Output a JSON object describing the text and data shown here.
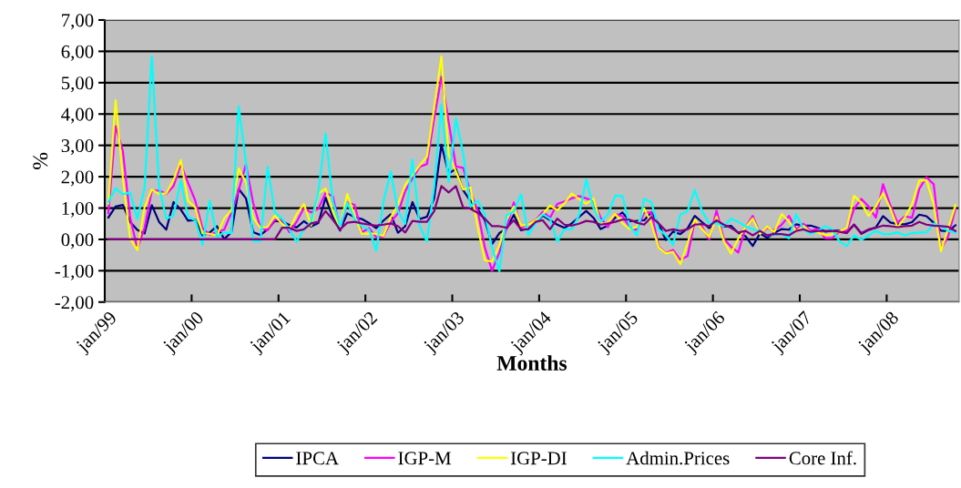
{
  "chart_data": {
    "type": "line",
    "xlabel": "Months",
    "ylabel": "%",
    "categories": [
      "jan/99",
      null,
      null,
      null,
      null,
      null,
      null,
      null,
      null,
      null,
      null,
      null,
      "jan/00",
      null,
      null,
      null,
      null,
      null,
      null,
      null,
      null,
      null,
      null,
      null,
      "jan/01",
      null,
      null,
      null,
      null,
      null,
      null,
      null,
      null,
      null,
      null,
      null,
      "jan/02",
      null,
      null,
      null,
      null,
      null,
      null,
      null,
      null,
      null,
      null,
      null,
      "jan/03",
      null,
      null,
      null,
      null,
      null,
      null,
      null,
      null,
      null,
      null,
      null,
      "jan/04",
      null,
      null,
      null,
      null,
      null,
      null,
      null,
      null,
      null,
      null,
      null,
      "jan/05",
      null,
      null,
      null,
      null,
      null,
      null,
      null,
      null,
      null,
      null,
      null,
      "jan/06",
      null,
      null,
      null,
      null,
      null,
      null,
      null,
      null,
      null,
      null,
      null,
      "jan/07",
      null,
      null,
      null,
      null,
      null,
      null,
      null,
      null,
      null,
      null,
      null,
      "jan/08",
      null,
      null,
      null,
      null,
      null,
      null,
      null,
      null,
      null
    ],
    "series": [
      {
        "name": "IPCA",
        "color": "#000080",
        "values": [
          0.7,
          1.05,
          1.1,
          0.56,
          0.3,
          0.19,
          1.09,
          0.56,
          0.31,
          1.19,
          0.95,
          0.6,
          0.62,
          0.13,
          0.22,
          0.42,
          0.01,
          0.23,
          1.61,
          1.31,
          0.23,
          0.14,
          0.32,
          0.59,
          0.57,
          0.46,
          0.38,
          0.58,
          0.41,
          0.52,
          1.33,
          0.7,
          0.28,
          0.83,
          0.71,
          0.65,
          0.52,
          0.36,
          0.6,
          0.8,
          0.21,
          0.42,
          1.19,
          0.65,
          0.72,
          1.31,
          3.02,
          2.1,
          2.25,
          1.57,
          1.23,
          0.97,
          0.61,
          -0.15,
          0.2,
          0.34,
          0.78,
          0.29,
          0.34,
          0.52,
          0.76,
          0.61,
          0.47,
          0.37,
          0.51,
          0.71,
          0.91,
          0.69,
          0.33,
          0.44,
          0.69,
          0.86,
          0.58,
          0.59,
          0.61,
          0.87,
          0.49,
          -0.02,
          0.25,
          0.17,
          0.35,
          0.75,
          0.55,
          0.36,
          0.59,
          0.41,
          0.43,
          0.21,
          0.1,
          -0.21,
          0.19,
          0.05,
          0.21,
          0.33,
          0.31,
          0.48,
          0.44,
          0.44,
          0.37,
          0.25,
          0.28,
          0.28,
          0.24,
          0.47,
          0.18,
          0.3,
          0.38,
          0.74,
          0.54,
          0.49,
          0.48,
          0.55,
          0.79,
          0.74,
          0.53,
          0.28,
          0.26,
          0.45
        ]
      },
      {
        "name": "IGP-M",
        "color": "#ff00ff",
        "values": [
          0.84,
          3.61,
          2.83,
          0.71,
          -0.29,
          0.36,
          1.55,
          1.56,
          1.45,
          1.7,
          2.39,
          1.81,
          1.24,
          0.35,
          0.15,
          0.23,
          0.31,
          0.85,
          1.57,
          2.39,
          1.16,
          0.38,
          0.29,
          0.63,
          0.62,
          0.23,
          0.56,
          1.0,
          0.86,
          0.98,
          1.48,
          1.38,
          0.31,
          1.18,
          1.1,
          0.22,
          0.36,
          0.06,
          0.09,
          0.56,
          0.83,
          1.54,
          1.95,
          2.32,
          2.4,
          3.87,
          5.19,
          3.75,
          2.33,
          2.28,
          1.53,
          0.92,
          -0.26,
          -1.0,
          -0.42,
          0.38,
          1.18,
          0.38,
          0.49,
          0.61,
          0.88,
          0.69,
          1.13,
          1.21,
          1.31,
          1.38,
          1.31,
          1.22,
          0.69,
          0.39,
          0.82,
          0.74,
          0.39,
          0.3,
          0.85,
          0.86,
          -0.22,
          -0.44,
          -0.34,
          -0.65,
          -0.53,
          0.6,
          0.4,
          -0.01,
          0.92,
          0.01,
          -0.23,
          -0.42,
          0.38,
          0.75,
          0.18,
          0.37,
          0.29,
          0.47,
          0.75,
          0.32,
          0.5,
          0.27,
          0.34,
          0.04,
          0.04,
          0.26,
          0.28,
          0.98,
          1.29,
          1.05,
          0.69,
          1.76,
          1.09,
          0.53,
          0.74,
          0.69,
          1.61,
          1.98,
          1.76,
          -0.32,
          0.11,
          0.98
        ]
      },
      {
        "name": "IGP-DI",
        "color": "#ffff00",
        "values": [
          1.15,
          4.44,
          1.98,
          0.03,
          -0.34,
          1.02,
          1.59,
          1.45,
          1.47,
          1.89,
          2.53,
          1.23,
          1.02,
          0.19,
          0.18,
          0.13,
          0.67,
          0.93,
          2.26,
          1.82,
          0.69,
          0.37,
          0.39,
          0.76,
          0.49,
          0.34,
          0.8,
          1.13,
          0.44,
          1.46,
          1.62,
          0.9,
          0.38,
          1.45,
          0.76,
          0.18,
          0.19,
          0.18,
          0.11,
          0.7,
          1.11,
          1.74,
          2.05,
          2.36,
          2.64,
          4.21,
          5.84,
          2.7,
          2.17,
          1.59,
          1.66,
          0.41,
          -0.67,
          -0.7,
          -0.2,
          0.62,
          1.05,
          0.44,
          0.48,
          0.6,
          0.8,
          1.08,
          0.93,
          1.15,
          1.46,
          1.29,
          1.14,
          1.31,
          0.48,
          0.53,
          0.82,
          0.52,
          0.33,
          0.4,
          0.99,
          0.51,
          -0.25,
          -0.45,
          -0.4,
          -0.79,
          -0.13,
          0.63,
          0.33,
          0.07,
          0.72,
          -0.06,
          -0.45,
          0.02,
          0.38,
          0.67,
          0.17,
          0.41,
          0.24,
          0.81,
          0.57,
          0.26,
          0.43,
          0.23,
          0.22,
          0.14,
          0.16,
          0.26,
          0.37,
          1.39,
          1.17,
          0.75,
          1.05,
          1.47,
          0.99,
          0.38,
          0.7,
          1.12,
          1.88,
          1.89,
          1.12,
          -0.38,
          0.36,
          1.09
        ]
      },
      {
        "name": "Admin.Prices",
        "color": "#00ffff",
        "values": [
          1.2,
          1.63,
          1.44,
          1.5,
          0.66,
          1.63,
          5.85,
          1.68,
          0.66,
          0.76,
          1.87,
          0.71,
          0.61,
          -0.17,
          1.24,
          0.08,
          0.22,
          0.2,
          4.25,
          2.46,
          -0.05,
          -0.05,
          2.31,
          0.85,
          0.66,
          0.32,
          -0.07,
          0.32,
          0.56,
          1.5,
          3.38,
          1.2,
          0.42,
          1.17,
          0.66,
          0.42,
          0.32,
          -0.36,
          1.2,
          2.17,
          0.9,
          0.5,
          2.55,
          0.42,
          -0.07,
          1.68,
          4.3,
          1.83,
          3.86,
          2.75,
          1.05,
          1.24,
          0.8,
          -0.26,
          -1.02,
          0.76,
          0.9,
          1.44,
          0.13,
          0.51,
          0.8,
          0.66,
          -0.07,
          0.32,
          0.32,
          0.76,
          1.92,
          1.0,
          0.56,
          0.8,
          1.39,
          1.39,
          0.42,
          0.13,
          1.29,
          1.19,
          0.32,
          0.13,
          -0.17,
          0.8,
          0.9,
          1.58,
          0.9,
          0.51,
          0.51,
          0.42,
          0.66,
          0.56,
          0.42,
          0.32,
          0.27,
          0.13,
          0.15,
          0.17,
          0.03,
          0.8,
          0.32,
          0.17,
          0.27,
          0.42,
          0.32,
          -0.07,
          -0.21,
          0.13,
          -0.02,
          0.13,
          0.27,
          0.17,
          0.17,
          0.22,
          0.13,
          0.2,
          0.22,
          0.22,
          0.51,
          0.42,
          0.27,
          0.22
        ]
      },
      {
        "name": "Core Inf.",
        "color": "#800080",
        "values": [
          0,
          0,
          0,
          0,
          0,
          0,
          0,
          0,
          0,
          0,
          0,
          0,
          0,
          0,
          0,
          0,
          0,
          0,
          0,
          0,
          0,
          0,
          0,
          0,
          0.37,
          0.37,
          0.27,
          0.32,
          0.51,
          0.56,
          0.9,
          0.63,
          0.32,
          0.53,
          0.56,
          0.51,
          0.47,
          0.44,
          0.47,
          0.51,
          0.42,
          0.22,
          0.59,
          0.56,
          0.56,
          0.9,
          1.7,
          1.5,
          1.7,
          1.02,
          0.98,
          0.85,
          0.66,
          0.42,
          0.42,
          0.37,
          0.61,
          0.32,
          0.32,
          0.56,
          0.61,
          0.32,
          0.66,
          0.47,
          0.44,
          0.5,
          0.59,
          0.56,
          0.47,
          0.51,
          0.56,
          0.63,
          0.63,
          0.53,
          0.47,
          0.71,
          0.51,
          0.27,
          0.32,
          0.27,
          0.32,
          0.47,
          0.49,
          0.42,
          0.61,
          0.47,
          0.37,
          0.22,
          0.27,
          0.13,
          0.27,
          0.13,
          0.17,
          0.17,
          0.13,
          0.27,
          0.32,
          0.24,
          0.27,
          0.27,
          0.27,
          0.24,
          0.2,
          0.47,
          0.2,
          0.32,
          0.37,
          0.44,
          0.42,
          0.39,
          0.42,
          0.44,
          0.56,
          0.47,
          0.44,
          0.42,
          0.4,
          0.27
        ]
      }
    ],
    "ylim": [
      -2,
      7
    ],
    "yticks": [
      {
        "value": -2,
        "label": "-2,00"
      },
      {
        "value": -1,
        "label": "-1,00"
      },
      {
        "value": 0,
        "label": "0,00"
      },
      {
        "value": 1,
        "label": "1,00"
      },
      {
        "value": 2,
        "label": "2,00"
      },
      {
        "value": 3,
        "label": "3,00"
      },
      {
        "value": 4,
        "label": "4,00"
      },
      {
        "value": 5,
        "label": "5,00"
      },
      {
        "value": 6,
        "label": "6,00"
      },
      {
        "value": 7,
        "label": "7,00"
      }
    ],
    "grid": "y",
    "legend": "bottom"
  }
}
